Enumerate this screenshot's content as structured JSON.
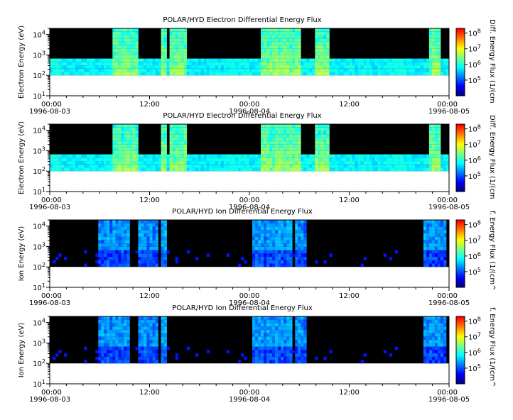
{
  "figure": {
    "background": "#ffffff",
    "plot_background": "#000000",
    "colormap": [
      "#00007f",
      "#0000ff",
      "#0080ff",
      "#00ffff",
      "#80ff80",
      "#ffff00",
      "#ff8000",
      "#ff0000"
    ]
  },
  "chart_data": [
    {
      "type": "heatmap",
      "title": "POLAR/HYD  Electron Differential Energy Flux",
      "ylabel": "Electron Energy (eV)",
      "colorbar_label": "Diff. Energy Flux (1/(cm",
      "yscale": "log",
      "ylim": [
        10,
        20000
      ],
      "y_ticks": [
        {
          "base": "10",
          "exp": "1"
        },
        {
          "base": "10",
          "exp": "2"
        },
        {
          "base": "10",
          "exp": "3"
        },
        {
          "base": "10",
          "exp": "4"
        }
      ],
      "x_ticks": [
        {
          "time": "00:00",
          "date": "1996-08-03"
        },
        {
          "time": "12:00",
          "date": ""
        },
        {
          "time": "00:00",
          "date": "1996-08-04"
        },
        {
          "time": "12:00",
          "date": ""
        },
        {
          "time": "00:00",
          "date": "1996-08-05"
        }
      ],
      "colorbar_ticks": [
        {
          "base": "10",
          "exp": "5"
        },
        {
          "base": "10",
          "exp": "6"
        },
        {
          "base": "10",
          "exp": "7"
        },
        {
          "base": "10",
          "exp": "8"
        }
      ],
      "colorbar_range": [
        10000,
        200000000
      ],
      "data_energy_min": 100,
      "baseline_flux": 400000,
      "baseline_energy": 500,
      "time_range_hours": [
        0,
        48
      ],
      "activity_hours": [
        [
          7.5,
          10.5
        ],
        [
          13.3,
          13.9
        ],
        [
          14.5,
          16.5
        ],
        [
          25.5,
          27.0
        ],
        [
          27.2,
          30.0
        ],
        [
          32.0,
          33.5
        ],
        [
          45.5,
          47.0
        ]
      ]
    },
    {
      "type": "heatmap",
      "title": "POLAR/HYD  Electron Differential Energy Flux",
      "ylabel": "Electron Energy (eV)",
      "colorbar_label": "Diff. Energy Flux (1/(cm",
      "yscale": "log",
      "ylim": [
        10,
        20000
      ],
      "y_ticks": [
        {
          "base": "10",
          "exp": "1"
        },
        {
          "base": "10",
          "exp": "2"
        },
        {
          "base": "10",
          "exp": "3"
        },
        {
          "base": "10",
          "exp": "4"
        }
      ],
      "x_ticks": [
        {
          "time": "00:00",
          "date": "1996-08-03"
        },
        {
          "time": "12:00",
          "date": ""
        },
        {
          "time": "00:00",
          "date": "1996-08-04"
        },
        {
          "time": "12:00",
          "date": ""
        },
        {
          "time": "00:00",
          "date": "1996-08-05"
        }
      ],
      "colorbar_ticks": [
        {
          "base": "10",
          "exp": "5"
        },
        {
          "base": "10",
          "exp": "6"
        },
        {
          "base": "10",
          "exp": "7"
        },
        {
          "base": "10",
          "exp": "8"
        }
      ],
      "colorbar_range": [
        10000,
        200000000
      ],
      "data_energy_min": 100,
      "baseline_flux": 400000,
      "baseline_energy": 500,
      "time_range_hours": [
        0,
        48
      ],
      "activity_hours": [
        [
          7.5,
          10.5
        ],
        [
          13.3,
          13.9
        ],
        [
          14.5,
          16.5
        ],
        [
          25.5,
          27.0
        ],
        [
          27.2,
          30.0
        ],
        [
          32.0,
          33.5
        ],
        [
          45.5,
          47.0
        ]
      ]
    },
    {
      "type": "heatmap",
      "title": "POLAR/HYD  Ion Differential Energy Flux",
      "ylabel": "Ion Energy (eV)",
      "colorbar_label": "f. Energy Flux (1/(cm^",
      "yscale": "log",
      "ylim": [
        10,
        20000
      ],
      "y_ticks": [
        {
          "base": "10",
          "exp": "1"
        },
        {
          "base": "10",
          "exp": "2"
        },
        {
          "base": "10",
          "exp": "3"
        },
        {
          "base": "10",
          "exp": "4"
        }
      ],
      "x_ticks": [
        {
          "time": "00:00",
          "date": "1996-08-03"
        },
        {
          "time": "12:00",
          "date": ""
        },
        {
          "time": "00:00",
          "date": "1996-08-04"
        },
        {
          "time": "12:00",
          "date": ""
        },
        {
          "time": "00:00",
          "date": "1996-08-05"
        }
      ],
      "colorbar_ticks": [
        {
          "base": "10",
          "exp": "5"
        },
        {
          "base": "10",
          "exp": "6"
        },
        {
          "base": "10",
          "exp": "7"
        },
        {
          "base": "10",
          "exp": "8"
        }
      ],
      "colorbar_range": [
        10000,
        200000000
      ],
      "data_energy_min": 100,
      "baseline_flux": 0,
      "baseline_energy": 0,
      "time_range_hours": [
        0,
        48
      ],
      "activity_hours": [
        [
          6.0,
          9.5
        ],
        [
          10.5,
          13.0
        ],
        [
          13.3,
          14.2
        ],
        [
          24.5,
          27.0
        ],
        [
          27.2,
          29.0
        ],
        [
          29.5,
          31.0
        ],
        [
          45.0,
          47.5
        ]
      ]
    },
    {
      "type": "heatmap",
      "title": "POLAR/HYD  Ion Differential Energy Flux",
      "ylabel": "Ion Energy (eV)",
      "colorbar_label": "f. Energy Flux (1/(cm^",
      "yscale": "log",
      "ylim": [
        10,
        20000
      ],
      "y_ticks": [
        {
          "base": "10",
          "exp": "1"
        },
        {
          "base": "10",
          "exp": "2"
        },
        {
          "base": "10",
          "exp": "3"
        },
        {
          "base": "10",
          "exp": "4"
        }
      ],
      "x_ticks": [
        {
          "time": "00:00",
          "date": "1996-08-03"
        },
        {
          "time": "12:00",
          "date": ""
        },
        {
          "time": "00:00",
          "date": "1996-08-04"
        },
        {
          "time": "12:00",
          "date": ""
        },
        {
          "time": "00:00",
          "date": "1996-08-05"
        }
      ],
      "colorbar_ticks": [
        {
          "base": "10",
          "exp": "5"
        },
        {
          "base": "10",
          "exp": "6"
        },
        {
          "base": "10",
          "exp": "7"
        },
        {
          "base": "10",
          "exp": "8"
        }
      ],
      "colorbar_range": [
        10000,
        200000000
      ],
      "data_energy_min": 100,
      "baseline_flux": 0,
      "baseline_energy": 0,
      "time_range_hours": [
        0,
        48
      ],
      "activity_hours": [
        [
          6.0,
          9.5
        ],
        [
          10.5,
          13.0
        ],
        [
          13.3,
          14.2
        ],
        [
          24.5,
          27.0
        ],
        [
          27.2,
          29.0
        ],
        [
          29.5,
          31.0
        ],
        [
          45.0,
          47.5
        ]
      ]
    }
  ]
}
